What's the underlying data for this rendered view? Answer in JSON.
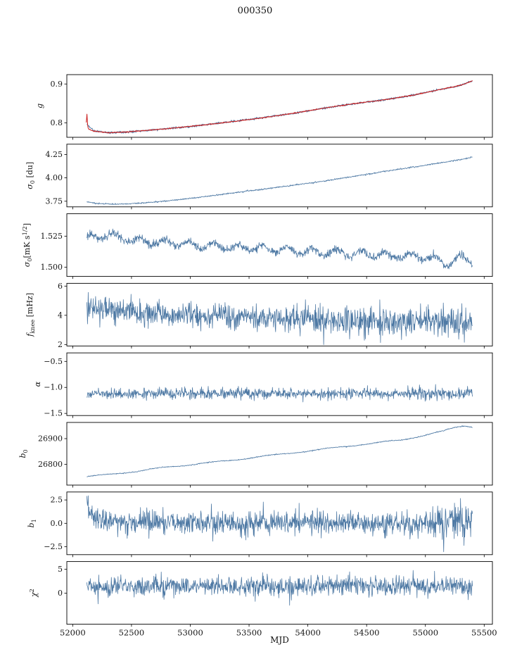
{
  "chart_data": {
    "type": "line",
    "title": "000350",
    "xlabel": "MJD",
    "colors": {
      "data": "#4e79a4",
      "fit": "#cc2222",
      "axis": "#000000"
    },
    "x_axis": {
      "lim": [
        51950,
        55570
      ],
      "data_range": [
        52120,
        55400
      ],
      "ticks": [
        {
          "v": 52000,
          "label": "52000"
        },
        {
          "v": 52500,
          "label": "52500"
        },
        {
          "v": 53000,
          "label": "53000"
        },
        {
          "v": 53500,
          "label": "53500"
        },
        {
          "v": 54000,
          "label": "54000"
        },
        {
          "v": 54500,
          "label": "54500"
        },
        {
          "v": 55000,
          "label": "55000"
        },
        {
          "v": 55500,
          "label": "55500"
        }
      ]
    },
    "panels": [
      {
        "name": "g",
        "ylabel": [
          {
            "t": "g",
            "i": true
          }
        ],
        "ylim": [
          0.763,
          0.924
        ],
        "yticks": [
          {
            "v": 0.8,
            "label": "0.8"
          },
          {
            "v": 0.9,
            "label": "0.9"
          }
        ],
        "series": [
          {
            "name": "gain-data",
            "color": "#4e79a4",
            "width": 0.9,
            "noise": 0.0013,
            "trend": [
              [
                52120,
                0.797
              ],
              [
                52180,
                0.779
              ],
              [
                52300,
                0.7748
              ],
              [
                52450,
                0.7765
              ],
              [
                52650,
                0.7812
              ],
              [
                52900,
                0.788
              ],
              [
                53150,
                0.7957
              ],
              [
                53400,
                0.8047
              ],
              [
                53650,
                0.8148
              ],
              [
                53900,
                0.8258
              ],
              [
                54150,
                0.8386
              ],
              [
                54400,
                0.8497
              ],
              [
                54650,
                0.8592
              ],
              [
                54900,
                0.8716
              ],
              [
                55150,
                0.8872
              ],
              [
                55300,
                0.8968
              ],
              [
                55400,
                0.9078
              ]
            ]
          },
          {
            "name": "gain-fit",
            "color": "#cc2222",
            "width": 1.0,
            "noise": 0.0006,
            "range": [
              52115,
              55400
            ],
            "trend": [
              [
                52115,
                0.8005
              ],
              [
                52121,
                0.8235
              ],
              [
                52128,
                0.7905
              ],
              [
                52138,
                0.7832
              ],
              [
                52180,
                0.7788
              ],
              [
                52300,
                0.7748
              ],
              [
                52450,
                0.7765
              ],
              [
                52650,
                0.7812
              ],
              [
                52900,
                0.788
              ],
              [
                53150,
                0.7957
              ],
              [
                53400,
                0.8047
              ],
              [
                53650,
                0.8148
              ],
              [
                53900,
                0.8258
              ],
              [
                54150,
                0.8386
              ],
              [
                54400,
                0.8497
              ],
              [
                54650,
                0.8592
              ],
              [
                54900,
                0.8716
              ],
              [
                55150,
                0.8872
              ],
              [
                55300,
                0.8968
              ],
              [
                55400,
                0.9078
              ]
            ]
          }
        ]
      },
      {
        "name": "sigma0-du",
        "ylabel": [
          {
            "t": "σ",
            "i": true
          },
          {
            "t": "0",
            "s": "sub"
          },
          {
            "t": " [du]"
          }
        ],
        "ylim": [
          3.69,
          4.36
        ],
        "yticks": [
          {
            "v": 3.75,
            "label": "3.75"
          },
          {
            "v": 4.0,
            "label": "4.00"
          },
          {
            "v": 4.25,
            "label": "4.25"
          }
        ],
        "series": [
          {
            "name": "sigma0-du",
            "color": "#4e79a4",
            "width": 0.8,
            "noise": 0.0035,
            "trend": [
              [
                52120,
                3.744
              ],
              [
                52200,
                3.727
              ],
              [
                52330,
                3.719
              ],
              [
                52480,
                3.723
              ],
              [
                52650,
                3.737
              ],
              [
                52900,
                3.766
              ],
              [
                53150,
                3.803
              ],
              [
                53400,
                3.844
              ],
              [
                53650,
                3.884
              ],
              [
                53900,
                3.925
              ],
              [
                54150,
                3.968
              ],
              [
                54400,
                4.018
              ],
              [
                54650,
                4.068
              ],
              [
                54900,
                4.115
              ],
              [
                55150,
                4.165
              ],
              [
                55300,
                4.195
              ],
              [
                55400,
                4.222
              ]
            ]
          }
        ]
      },
      {
        "name": "sigma0-mks",
        "ylabel": [
          {
            "t": "σ",
            "i": true
          },
          {
            "t": "0",
            "s": "sub"
          },
          {
            "t": "[mK s"
          },
          {
            "t": "1/2",
            "s": "sup"
          },
          {
            "t": "]"
          }
        ],
        "ylim": [
          1.4926,
          1.5432
        ],
        "yticks": [
          {
            "v": 1.5,
            "label": "1.500"
          },
          {
            "v": 1.525,
            "label": "1.525"
          }
        ],
        "series": [
          {
            "name": "sigma0-mks",
            "color": "#4e79a4",
            "width": 0.8,
            "noise": 0.0016,
            "sine": {
              "amp": 0.0026,
              "period": 210,
              "phase": 0.8
            },
            "trend": [
              [
                52120,
                1.5235
              ],
              [
                52280,
                1.5265
              ],
              [
                52420,
                1.5235
              ],
              [
                52600,
                1.5205
              ],
              [
                52850,
                1.5195
              ],
              [
                53100,
                1.5178
              ],
              [
                53400,
                1.5158
              ],
              [
                53700,
                1.5148
              ],
              [
                54000,
                1.5125
              ],
              [
                54300,
                1.5118
              ],
              [
                54600,
                1.5102
              ],
              [
                54900,
                1.5085
              ],
              [
                55050,
                1.5078
              ],
              [
                55170,
                1.5022
              ],
              [
                55280,
                1.5072
              ],
              [
                55400,
                1.5052
              ]
            ]
          }
        ]
      },
      {
        "name": "fknee",
        "ylabel": [
          {
            "t": "f",
            "i": true
          },
          {
            "t": "knee",
            "s": "sub"
          },
          {
            "t": " [mHz]"
          }
        ],
        "ylim": [
          1.9,
          6.19
        ],
        "yticks": [
          {
            "v": 2,
            "label": "2"
          },
          {
            "v": 4,
            "label": "4"
          },
          {
            "v": 6,
            "label": "6"
          }
        ],
        "series": [
          {
            "name": "fknee",
            "color": "#4e79a4",
            "width": 0.8,
            "noise": 0.47,
            "trend": [
              [
                52120,
                4.45
              ],
              [
                52350,
                4.3
              ],
              [
                52600,
                4.18
              ],
              [
                52900,
                4.05
              ],
              [
                53200,
                3.95
              ],
              [
                53600,
                3.82
              ],
              [
                54000,
                3.72
              ],
              [
                54400,
                3.63
              ],
              [
                54800,
                3.58
              ],
              [
                55200,
                3.55
              ],
              [
                55400,
                3.5
              ]
            ]
          }
        ]
      },
      {
        "name": "alpha",
        "ylabel": [
          {
            "t": "α",
            "i": true
          }
        ],
        "ylim": [
          -1.541,
          -0.336
        ],
        "yticks": [
          {
            "v": -0.5,
            "label": "−0.5"
          },
          {
            "v": -1.0,
            "label": "−1.0"
          },
          {
            "v": -1.5,
            "label": "−1.5"
          }
        ],
        "series": [
          {
            "name": "alpha",
            "color": "#4e79a4",
            "width": 0.8,
            "noise": 0.052,
            "trend": [
              [
                52120,
                -1.118
              ],
              [
                55400,
                -1.118
              ]
            ]
          }
        ]
      },
      {
        "name": "b0",
        "ylabel": [
          {
            "t": "b",
            "i": true
          },
          {
            "t": "0",
            "s": "sub"
          }
        ],
        "ylim": [
          26719,
          26963
        ],
        "yticks": [
          {
            "v": 26800,
            "label": "26800"
          },
          {
            "v": 26900,
            "label": "26900"
          }
        ],
        "series": [
          {
            "name": "b0",
            "color": "#4e79a4",
            "width": 0.8,
            "noise": 0.9,
            "sine": {
              "amp": 2.0,
              "period": 480,
              "phase": 0
            },
            "trend": [
              [
                52120,
                26752
              ],
              [
                52300,
                26760
              ],
              [
                52550,
                26773
              ],
              [
                52800,
                26789
              ],
              [
                53050,
                26801
              ],
              [
                53300,
                26813
              ],
              [
                53550,
                26827
              ],
              [
                53800,
                26841
              ],
              [
                54050,
                26854
              ],
              [
                54300,
                26869
              ],
              [
                54550,
                26881
              ],
              [
                54800,
                26896
              ],
              [
                55000,
                26913
              ],
              [
                55150,
                26929
              ],
              [
                55250,
                26944
              ],
              [
                55330,
                26951
              ],
              [
                55400,
                26946
              ]
            ]
          }
        ]
      },
      {
        "name": "b1",
        "ylabel": [
          {
            "t": "b",
            "i": true
          },
          {
            "t": "1",
            "s": "sub"
          }
        ],
        "ylim": [
          -3.35,
          3.35
        ],
        "yticks": [
          {
            "v": -2.5,
            "label": "−2.5"
          },
          {
            "v": 0,
            "label": "0.0"
          },
          {
            "v": 2.5,
            "label": "2.5"
          }
        ],
        "series": [
          {
            "name": "b1",
            "color": "#4e79a4",
            "width": 0.8,
            "noise": 0.62,
            "noise2": {
              "from": 55060,
              "sd": 0.92
            },
            "outliers": [
              [
                55155,
                -3.2
              ]
            ],
            "trend": [
              [
                52118,
                2.45
              ],
              [
                52150,
                1.15
              ],
              [
                52210,
                0.38
              ],
              [
                52360,
                0.06
              ],
              [
                55400,
                0
              ]
            ]
          }
        ]
      },
      {
        "name": "chi2",
        "ylabel": [
          {
            "t": "χ",
            "i": true
          },
          {
            "t": "2",
            "s": "sup"
          }
        ],
        "ylim": [
          -6.5,
          6.6
        ],
        "yticks": [
          {
            "v": 0,
            "label": "0"
          },
          {
            "v": 5,
            "label": "5"
          }
        ],
        "series": [
          {
            "name": "chi2",
            "color": "#4e79a4",
            "width": 0.8,
            "noise": 1.0,
            "trend": [
              [
                52120,
                1.3
              ],
              [
                52600,
                1.5
              ],
              [
                53500,
                1.35
              ],
              [
                54500,
                1.5
              ],
              [
                55400,
                1.65
              ]
            ]
          }
        ]
      }
    ]
  }
}
